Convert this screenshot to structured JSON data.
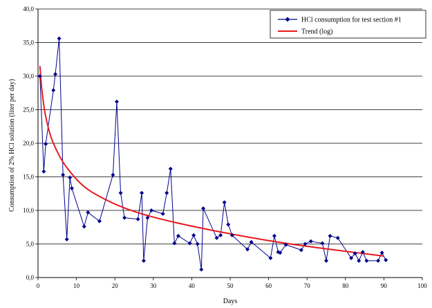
{
  "chart_data": {
    "type": "line",
    "title": "",
    "xlabel": "Days",
    "ylabel": "Consumption of 2% HCl solution (liter per day)",
    "xlim": [
      0,
      100
    ],
    "ylim": [
      0,
      40
    ],
    "x_ticks": [
      "0",
      "10",
      "20",
      "30",
      "40",
      "50",
      "60",
      "70",
      "80",
      "90",
      "100"
    ],
    "y_ticks": [
      "0,0",
      "5,0",
      "10,0",
      "15,0",
      "20,0",
      "25,0",
      "30,0",
      "35,0",
      "40,0"
    ],
    "grid": "horizontal",
    "legend_position": "top-right",
    "series": [
      {
        "name": "HCl consumption for test section #1",
        "color": "#00008B",
        "marker": "diamond",
        "x": [
          0.5,
          1.5,
          2,
          4,
          4.5,
          5.5,
          6.5,
          7.5,
          8.3,
          8.8,
          12,
          13,
          16,
          19.5,
          20.5,
          21.5,
          22.5,
          26,
          27,
          27.5,
          28.5,
          29.5,
          32.5,
          33.5,
          34.5,
          35.5,
          36.5,
          39.5,
          40.5,
          41.5,
          42.5,
          43,
          46.5,
          47.5,
          48.5,
          49.5,
          50.5,
          54.5,
          55.5,
          60.5,
          61.5,
          62.5,
          63,
          64.5,
          68.5,
          69.5,
          71,
          74,
          75,
          76,
          78,
          81.5,
          82.5,
          83.5,
          84.5,
          85.5,
          88.5,
          89.5,
          90.5
        ],
        "y": [
          30.0,
          15.8,
          19.9,
          27.9,
          30.3,
          35.6,
          15.3,
          5.7,
          14.9,
          13.3,
          7.6,
          9.7,
          8.4,
          15.3,
          26.2,
          12.6,
          8.9,
          8.7,
          12.6,
          2.5,
          8.9,
          10.0,
          9.5,
          12.6,
          16.2,
          5.1,
          6.2,
          5.1,
          6.3,
          5.0,
          1.2,
          10.3,
          5.9,
          6.3,
          11.2,
          7.9,
          6.3,
          4.2,
          5.3,
          2.9,
          6.2,
          3.8,
          3.7,
          4.9,
          4.1,
          5.0,
          5.4,
          5.1,
          2.5,
          6.2,
          5.9,
          2.9,
          3.6,
          2.5,
          3.8,
          2.5,
          2.5,
          3.7,
          2.6
        ]
      },
      {
        "name": "Trend (log)",
        "color": "#E8191E",
        "fit": "logarithmic",
        "x": [
          0.5,
          1,
          2,
          4,
          8,
          15,
          30,
          60,
          90
        ],
        "y": [
          31.5,
          28.0,
          24.0,
          20.0,
          16.0,
          12.4,
          9.0,
          5.5,
          3.2
        ]
      }
    ]
  }
}
